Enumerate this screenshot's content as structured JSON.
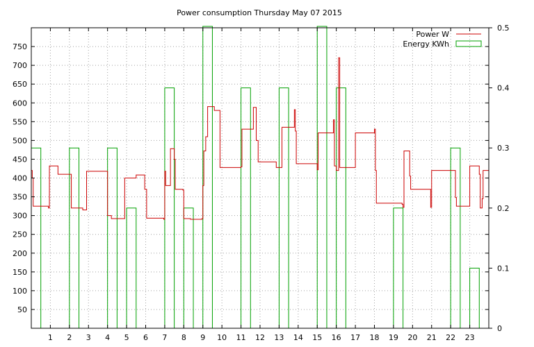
{
  "chart_data": {
    "type": "line",
    "title": "Power consumption Thursday May 07 2015",
    "xlabel": "",
    "ylabel": "",
    "x_ticks": [
      1,
      2,
      3,
      4,
      5,
      6,
      7,
      8,
      9,
      10,
      11,
      12,
      13,
      14,
      15,
      16,
      17,
      18,
      19,
      20,
      21,
      22,
      23
    ],
    "xlim": [
      0,
      24
    ],
    "y_ticks": [
      50,
      100,
      150,
      200,
      250,
      300,
      350,
      400,
      450,
      500,
      550,
      600,
      650,
      700,
      750
    ],
    "ylim": [
      0,
      800
    ],
    "y2_ticks": [
      "0",
      "0.1",
      "0.2",
      "0.3",
      "0.4",
      "0.5"
    ],
    "y2lim": [
      0,
      0.5
    ],
    "grid": true,
    "legend_position": "top-right",
    "series": [
      {
        "name": "Power W",
        "color": "#cc0000",
        "axis": "left",
        "style": "step",
        "points": [
          [
            0.0,
            420
          ],
          [
            0.05,
            400
          ],
          [
            0.1,
            325
          ],
          [
            0.9,
            320
          ],
          [
            0.95,
            432
          ],
          [
            1.4,
            410
          ],
          [
            2.1,
            320
          ],
          [
            2.7,
            315
          ],
          [
            2.9,
            418
          ],
          [
            3.95,
            418
          ],
          [
            4.0,
            300
          ],
          [
            4.2,
            292
          ],
          [
            4.85,
            292
          ],
          [
            4.9,
            400
          ],
          [
            5.5,
            408
          ],
          [
            5.95,
            370
          ],
          [
            6.05,
            293
          ],
          [
            6.95,
            290
          ],
          [
            7.0,
            418
          ],
          [
            7.05,
            380
          ],
          [
            7.3,
            478
          ],
          [
            7.5,
            450
          ],
          [
            7.55,
            370
          ],
          [
            7.95,
            368
          ],
          [
            8.0,
            292
          ],
          [
            8.35,
            290
          ],
          [
            8.95,
            292
          ],
          [
            9.0,
            380
          ],
          [
            9.05,
            472
          ],
          [
            9.15,
            510
          ],
          [
            9.25,
            590
          ],
          [
            9.6,
            580
          ],
          [
            9.9,
            428
          ],
          [
            11.0,
            430
          ],
          [
            11.05,
            530
          ],
          [
            11.6,
            530
          ],
          [
            11.65,
            588
          ],
          [
            11.8,
            500
          ],
          [
            11.9,
            443
          ],
          [
            12.8,
            443
          ],
          [
            12.85,
            428
          ],
          [
            13.1,
            428
          ],
          [
            13.15,
            535
          ],
          [
            13.75,
            535
          ],
          [
            13.8,
            582
          ],
          [
            13.85,
            525
          ],
          [
            13.9,
            438
          ],
          [
            14.95,
            438
          ],
          [
            15.0,
            422
          ],
          [
            15.05,
            520
          ],
          [
            15.8,
            520
          ],
          [
            15.85,
            555
          ],
          [
            15.9,
            432
          ],
          [
            16.0,
            420
          ],
          [
            16.12,
            720
          ],
          [
            16.18,
            428
          ],
          [
            16.9,
            428
          ],
          [
            17.0,
            520
          ],
          [
            17.95,
            520
          ],
          [
            18.0,
            530
          ],
          [
            18.05,
            420
          ],
          [
            18.1,
            333
          ],
          [
            19.45,
            330
          ],
          [
            19.5,
            322
          ],
          [
            19.55,
            472
          ],
          [
            19.8,
            472
          ],
          [
            19.85,
            405
          ],
          [
            19.9,
            370
          ],
          [
            20.9,
            370
          ],
          [
            20.95,
            322
          ],
          [
            21.0,
            420
          ],
          [
            22.2,
            420
          ],
          [
            22.25,
            348
          ],
          [
            22.3,
            325
          ],
          [
            22.95,
            325
          ],
          [
            23.0,
            432
          ],
          [
            23.5,
            410
          ],
          [
            23.55,
            320
          ],
          [
            23.65,
            345
          ],
          [
            23.7,
            420
          ],
          [
            24.0,
            420
          ]
        ]
      },
      {
        "name": "Energy KWh",
        "color": "#00a000",
        "axis": "right",
        "style": "bars",
        "width": 0.5,
        "x": [
          0,
          2,
          4,
          5,
          7,
          8,
          9,
          11,
          13,
          15,
          16,
          19,
          22,
          23
        ],
        "values": [
          0.3,
          0.3,
          0.3,
          0.2,
          0.4,
          0.2,
          0.55,
          0.4,
          0.4,
          0.55,
          0.4,
          0.2,
          0.3,
          0.1
        ]
      }
    ]
  }
}
